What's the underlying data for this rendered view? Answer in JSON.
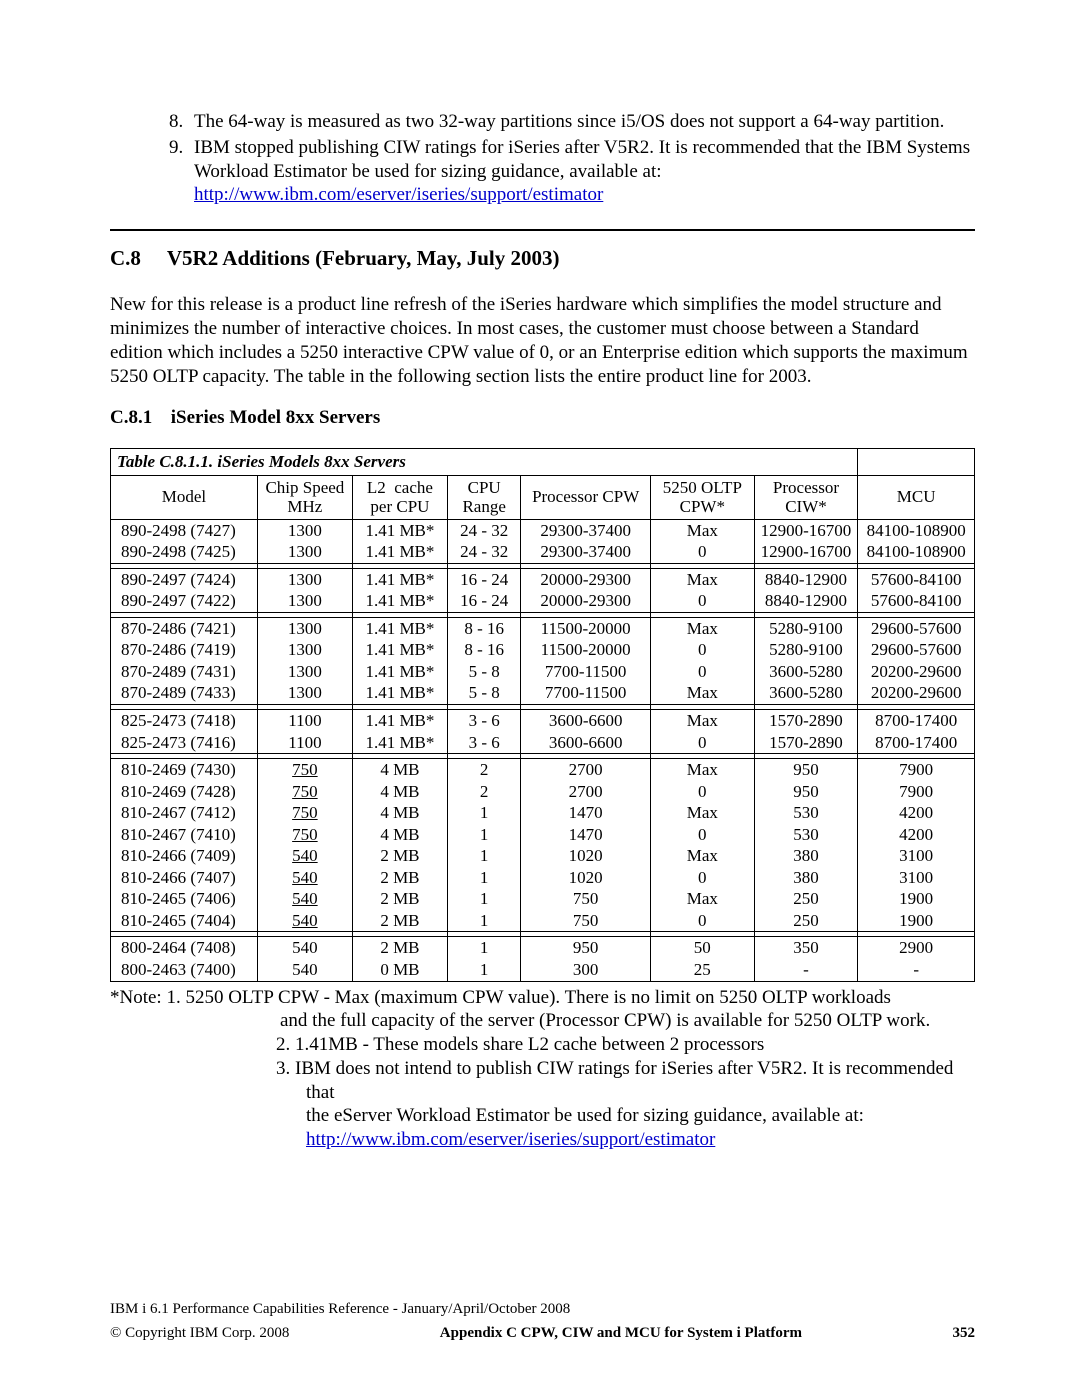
{
  "topList": {
    "start": 8,
    "items": [
      "The 64-way is measured as two 32-way partitions since i5/OS does not support a 64-way partition.",
      "IBM stopped publishing CIW ratings for iSeries after V5R2. It is recommended that the IBM Systems Workload Estimator be used for sizing guidance, available at:"
    ],
    "link": "http://www.ibm.com/eserver/iseries/support/estimator"
  },
  "section": {
    "num": "C.8",
    "title": "V5R2 Additions (February, May, July 2003)",
    "body": "New for this release is a product line refresh of the iSeries hardware which simplifies the model structure and minimizes the number of interactive choices. In most cases, the customer must choose between a Standard edition which includes a 5250 interactive CPW value of 0, or an Enterprise edition which supports the maximum 5250 OLTP capacity. The table in the following section lists the entire product line for 2003."
  },
  "subsection": {
    "num": "C.8.1",
    "title": "iSeries Model 8xx Servers"
  },
  "table": {
    "caption": "Table C.8.1.1.  iSeries Models   8xx Servers",
    "columns": [
      "Model",
      "Chip Speed MHz",
      "L2  cache per CPU",
      "CPU Range",
      "Processor CPW",
      "5250 OLTP CPW*",
      "Processor CIW*",
      "MCU"
    ],
    "colWidths": [
      "17%",
      "11%",
      "11%",
      "8.5%",
      "15%",
      "12%",
      "12%",
      "13.5%"
    ],
    "groups": [
      [
        {
          "model": "890-2498  (7427)",
          "mhz": "1300",
          "l2": "1.41 MB*",
          "cpu": "24 - 32",
          "pcpw": "29300-37400",
          "oltp": "Max",
          "ciw": "12900-16700",
          "mcu": "84100-108900",
          "u": false
        },
        {
          "model": "890-2498  (7425)",
          "mhz": "1300",
          "l2": "1.41 MB*",
          "cpu": "24 - 32",
          "pcpw": "29300-37400",
          "oltp": "0",
          "ciw": "12900-16700",
          "mcu": "84100-108900",
          "u": false
        }
      ],
      [
        {
          "model": "890-2497  (7424)",
          "mhz": "1300",
          "l2": "1.41 MB*",
          "cpu": "16 - 24",
          "pcpw": "20000-29300",
          "oltp": "Max",
          "ciw": "8840-12900",
          "mcu": "57600-84100",
          "u": false
        },
        {
          "model": "890-2497  (7422)",
          "mhz": "1300",
          "l2": "1.41 MB*",
          "cpu": "16 - 24",
          "pcpw": "20000-29300",
          "oltp": "0",
          "ciw": "8840-12900",
          "mcu": "57600-84100",
          "u": false
        }
      ],
      [
        {
          "model": "870-2486  (7421)",
          "mhz": "1300",
          "l2": "1.41 MB*",
          "cpu": "8 - 16",
          "pcpw": "11500-20000",
          "oltp": "Max",
          "ciw": "5280-9100",
          "mcu": "29600-57600",
          "u": false
        },
        {
          "model": "870-2486  (7419)",
          "mhz": "1300",
          "l2": "1.41 MB*",
          "cpu": "8 - 16",
          "pcpw": "11500-20000",
          "oltp": "0",
          "ciw": "5280-9100",
          "mcu": "29600-57600",
          "u": false
        },
        {
          "model": "870-2489  (7431)",
          "mhz": "1300",
          "l2": "1.41 MB*",
          "cpu": "5 - 8",
          "pcpw": "7700-11500",
          "oltp": "0",
          "ciw": "3600-5280",
          "mcu": "20200-29600",
          "u": false
        },
        {
          "model": "870-2489  (7433)",
          "mhz": "1300",
          "l2": "1.41 MB*",
          "cpu": "5 - 8",
          "pcpw": "7700-11500",
          "oltp": "Max",
          "ciw": "3600-5280",
          "mcu": "20200-29600",
          "u": false
        }
      ],
      [
        {
          "model": "825-2473  (7418)",
          "mhz": "1100",
          "l2": "1.41 MB*",
          "cpu": "3 - 6",
          "pcpw": "3600-6600",
          "oltp": "Max",
          "ciw": "1570-2890",
          "mcu": "8700-17400",
          "u": false
        },
        {
          "model": "825-2473  (7416)",
          "mhz": "1100",
          "l2": "1.41 MB*",
          "cpu": "3 - 6",
          "pcpw": "3600-6600",
          "oltp": "0",
          "ciw": "1570-2890",
          "mcu": "8700-17400",
          "u": false
        }
      ],
      [
        {
          "model": "810-2469  (7430)",
          "mhz": "750",
          "l2": "4 MB",
          "cpu": "2",
          "pcpw": "2700",
          "oltp": "Max",
          "ciw": "950",
          "mcu": "7900",
          "u": true
        },
        {
          "model": "810-2469  (7428)",
          "mhz": "750",
          "l2": "4 MB",
          "cpu": "2",
          "pcpw": "2700",
          "oltp": "0",
          "ciw": "950",
          "mcu": "7900",
          "u": true
        },
        {
          "model": "810-2467  (7412)",
          "mhz": "750",
          "l2": "4 MB",
          "cpu": "1",
          "pcpw": "1470",
          "oltp": "Max",
          "ciw": "530",
          "mcu": "4200",
          "u": true
        },
        {
          "model": "810-2467  (7410)",
          "mhz": "750",
          "l2": "4 MB",
          "cpu": "1",
          "pcpw": "1470",
          "oltp": "0",
          "ciw": "530",
          "mcu": "4200",
          "u": true
        },
        {
          "model": "810-2466  (7409)",
          "mhz": "540",
          "l2": "2 MB",
          "cpu": "1",
          "pcpw": "1020",
          "oltp": "Max",
          "ciw": "380",
          "mcu": "3100",
          "u": true
        },
        {
          "model": "810-2466  (7407)",
          "mhz": "540",
          "l2": "2 MB",
          "cpu": "1",
          "pcpw": "1020",
          "oltp": "0",
          "ciw": "380",
          "mcu": "3100",
          "u": true
        },
        {
          "model": "810-2465  (7406)",
          "mhz": "540",
          "l2": "2 MB",
          "cpu": "1",
          "pcpw": "750",
          "oltp": "Max",
          "ciw": "250",
          "mcu": "1900",
          "u": true
        },
        {
          "model": "810-2465  (7404)",
          "mhz": "540",
          "l2": "2 MB",
          "cpu": "1",
          "pcpw": "750",
          "oltp": "0",
          "ciw": "250",
          "mcu": "1900",
          "u": true
        }
      ],
      [
        {
          "model": "800-2464  (7408)",
          "mhz": "540",
          "l2": "2 MB",
          "cpu": "1",
          "pcpw": "950",
          "oltp": "50",
          "ciw": "350",
          "mcu": "2900",
          "u": false
        },
        {
          "model": "800-2463  (7400)",
          "mhz": "540",
          "l2": "0 MB",
          "cpu": "1",
          "pcpw": "300",
          "oltp": "25",
          "ciw": "-",
          "mcu": "-",
          "u": false
        }
      ]
    ]
  },
  "notes": {
    "lead": "*Note: 1. 5250 OLTP CPW - Max (maximum CPW value). There is no limit on 5250 OLTP workloads",
    "leadCont": "and the full capacity of the server (Processor CPW) is available for 5250 OLTP work.",
    "n2": "2.  1.41MB - These models share L2 cache between 2 processors",
    "n3a": "3.  IBM does not intend to publish CIW ratings for iSeries after V5R2. It is recommended that",
    "n3b": "the eServer Workload Estimator be used for sizing guidance, available at:",
    "link": "http://www.ibm.com/eserver/iseries/support/estimator"
  },
  "footer": {
    "line1": "IBM i 6.1 Performance Capabilities Reference - January/April/October 2008",
    "copyright": " Copyright IBM Corp. 2008",
    "appendix": "Appendix C  CPW, CIW and MCU for  System i Platform",
    "page": "352"
  }
}
